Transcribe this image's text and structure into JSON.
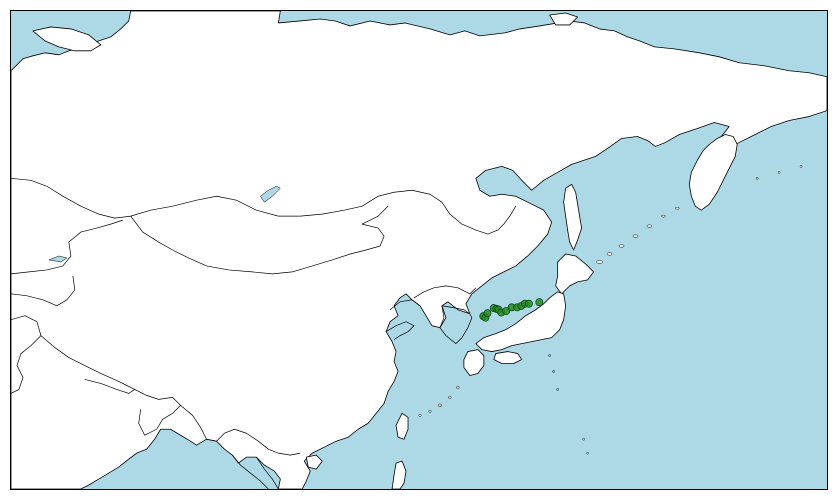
{
  "map": {
    "colors": {
      "ocean": "#add8e6",
      "land": "#ffffff",
      "border": "#000000",
      "occurrence": "#228b22"
    },
    "extent": {
      "lon_min": 62,
      "lon_max": 180,
      "lat_min": 10,
      "lat_max": 75
    },
    "occurrences": [
      {
        "lon": 130.3,
        "lat": 33.5
      },
      {
        "lon": 130.6,
        "lat": 33.3
      },
      {
        "lon": 130.9,
        "lat": 33.9
      },
      {
        "lon": 131.8,
        "lat": 34.6
      },
      {
        "lon": 132.2,
        "lat": 34.5
      },
      {
        "lon": 132.5,
        "lat": 34.4
      },
      {
        "lon": 132.9,
        "lat": 34.0
      },
      {
        "lon": 133.6,
        "lat": 34.2
      },
      {
        "lon": 134.4,
        "lat": 34.7
      },
      {
        "lon": 135.2,
        "lat": 34.7
      },
      {
        "lon": 135.8,
        "lat": 34.9
      },
      {
        "lon": 136.3,
        "lat": 35.2
      },
      {
        "lon": 136.9,
        "lat": 35.2
      },
      {
        "lon": 138.4,
        "lat": 35.4
      }
    ]
  }
}
